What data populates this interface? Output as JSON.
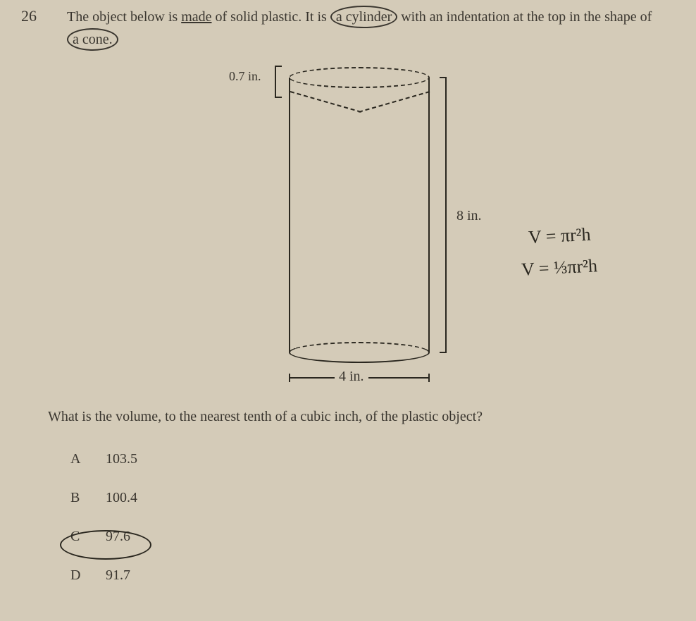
{
  "question": {
    "number": "26",
    "text_part1": "The object below is ",
    "text_underlined": "made",
    "text_part2": " of solid plastic. It is ",
    "text_circled1": "a cylinder",
    "text_part3": " with an indentation at the top in the shape of ",
    "text_circled2": "a cone."
  },
  "diagram": {
    "type": "cylinder_with_cone_indentation",
    "cone_depth_label": "0.7 in.",
    "cone_depth_value": 0.7,
    "height_label": "8 in.",
    "height_value": 8,
    "diameter_label": "4 in.",
    "diameter_value": 4,
    "colors": {
      "background": "#d4cbb8",
      "line": "#2a271f",
      "text": "#3a362f"
    },
    "line_width": 2,
    "font_size_labels": 18
  },
  "handwriting": {
    "formula_cylinder": "V = πr²h",
    "formula_cone": "V = ⅓πr²h",
    "color": "#2a271f",
    "font_size": 26
  },
  "prompt": "What is the volume, to the nearest tenth of a cubic inch, of the plastic object?",
  "choices": {
    "A": "103.5",
    "B": "100.4",
    "C": "97.6",
    "D": "91.7"
  },
  "circled_answer": "C"
}
